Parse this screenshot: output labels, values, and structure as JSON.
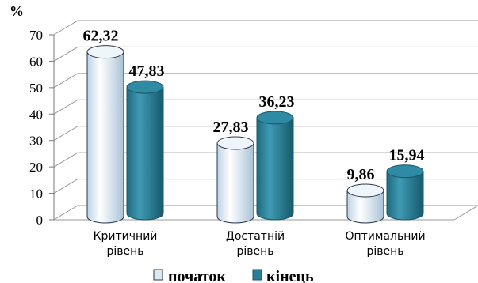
{
  "chart_data": {
    "type": "bar",
    "ylabel": "%",
    "ylim": [
      0,
      70
    ],
    "yticks": [
      0,
      10,
      20,
      30,
      40,
      50,
      60,
      70
    ],
    "categories": [
      [
        "Критичний",
        "рівень"
      ],
      [
        "Достатній",
        "рівень"
      ],
      [
        "Оптимальний",
        "рівень"
      ]
    ],
    "series": [
      {
        "name": "початок",
        "values": [
          62.32,
          27.83,
          9.86
        ],
        "labels": [
          "62,32",
          "27,83",
          "9,86"
        ],
        "color": "#dbe8f2"
      },
      {
        "name": "кінець",
        "values": [
          47.83,
          36.23,
          15.94
        ],
        "labels": [
          "47,83",
          "36,23",
          "15,94"
        ],
        "color": "#2a7e96"
      }
    ],
    "grid": true,
    "legend": "bottom",
    "style": "3d-cylinder"
  }
}
